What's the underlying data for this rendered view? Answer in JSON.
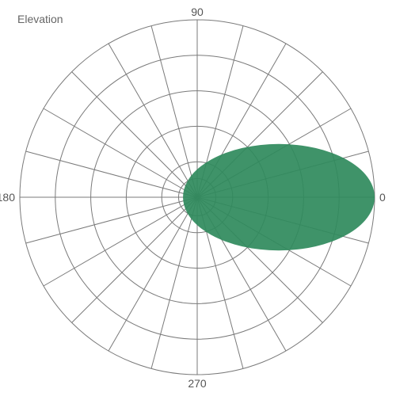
{
  "chart_data": {
    "type": "polar-area",
    "title": "Elevation",
    "angle_labels": [
      {
        "angle": 90,
        "text": "90"
      },
      {
        "angle": 0,
        "text": "0"
      },
      {
        "angle": 180,
        "text": "180"
      },
      {
        "angle": 270,
        "text": "270"
      }
    ],
    "radial_rings": [
      0.2,
      0.4,
      0.6,
      0.8,
      1.0
    ],
    "spoke_step_deg": 15,
    "series": [
      {
        "shape": "ellipse",
        "color": "#2f8a5c",
        "opacity": 0.92,
        "x_min": -0.08,
        "x_max": 1.0,
        "y_half": 0.3
      }
    ]
  }
}
